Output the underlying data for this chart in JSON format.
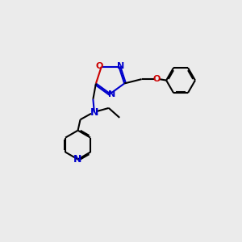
{
  "background_color": "#ebebeb",
  "bond_color": "#000000",
  "nitrogen_color": "#0000cc",
  "oxygen_color": "#cc0000",
  "line_width": 1.5,
  "dbo": 0.055,
  "figsize": [
    3.0,
    3.0
  ],
  "dpi": 100,
  "xlim": [
    0,
    10
  ],
  "ylim": [
    0,
    10
  ]
}
